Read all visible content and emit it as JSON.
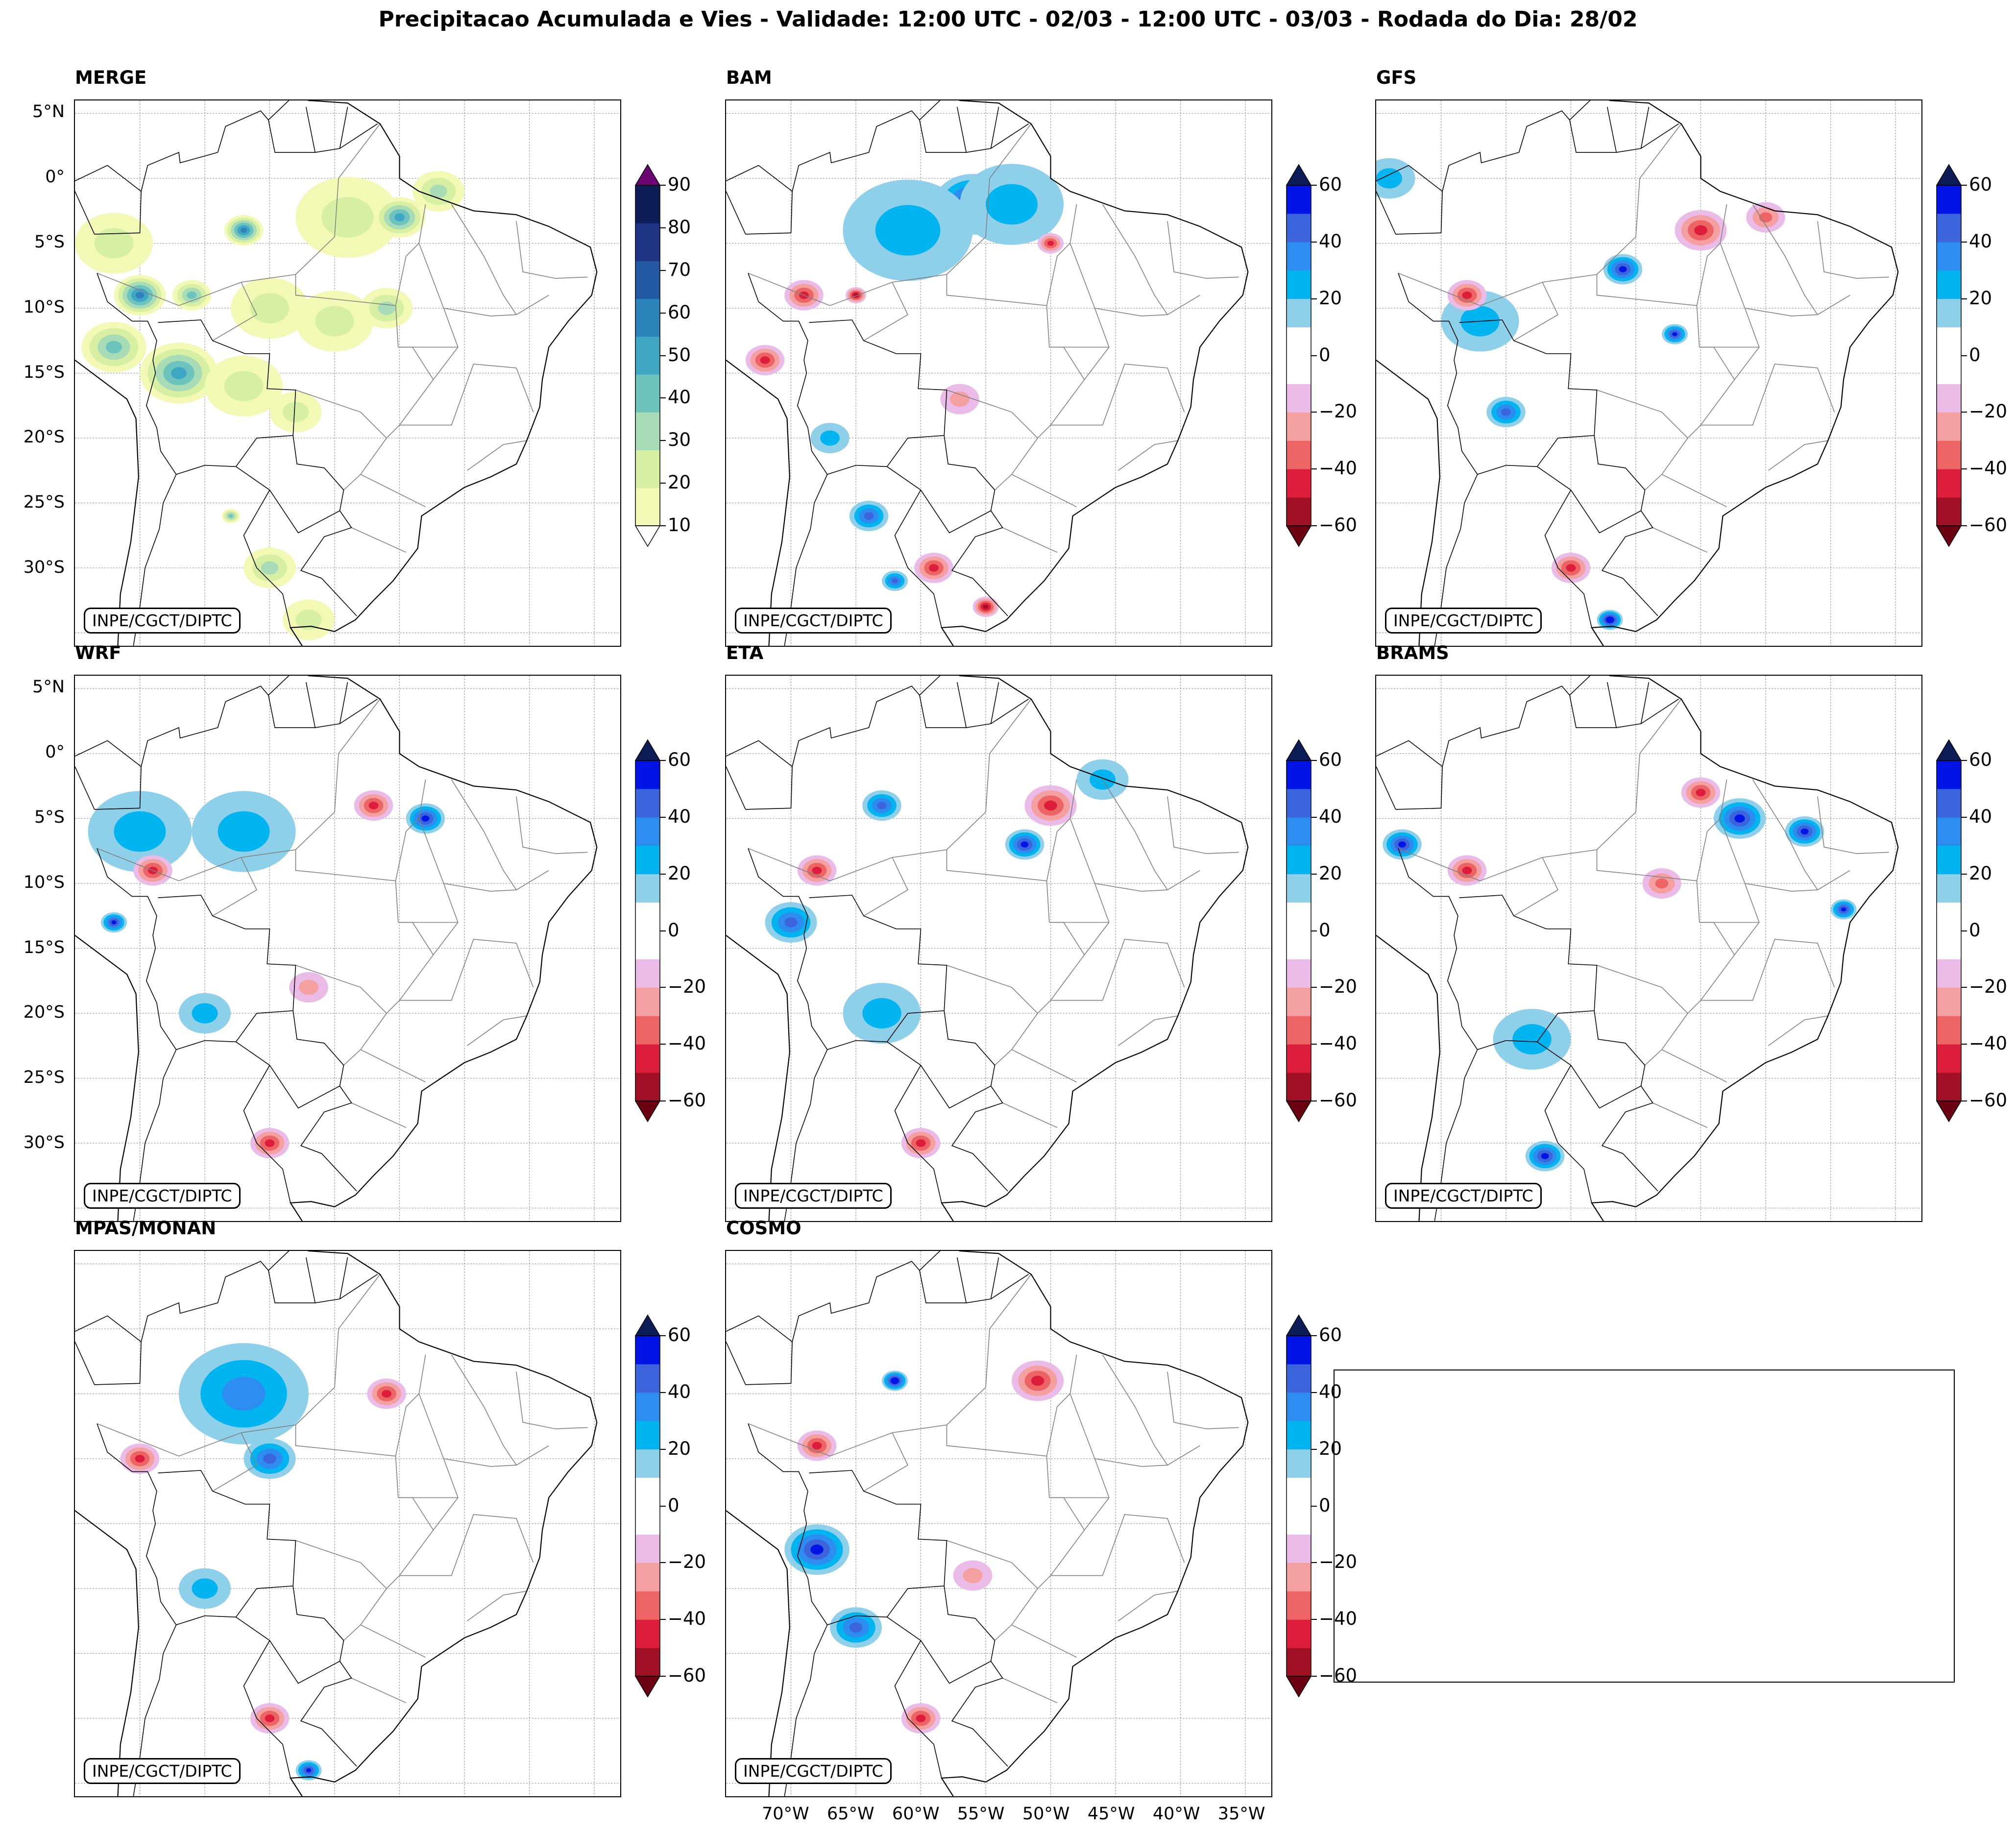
{
  "figure": {
    "title": "Precipitacao Acumulada e Vies - Validade: 12:00 UTC - 02/03 - 12:00 UTC - 03/03 - Rodada do Dia: 28/02",
    "credit_label": "INPE/CGCT/DIPTC",
    "lat_ticks": [
      "5°N",
      "0°",
      "5°S",
      "10°S",
      "15°S",
      "20°S",
      "25°S",
      "30°S"
    ],
    "lon_ticks": [
      "70°W",
      "65°W",
      "60°W",
      "55°W",
      "50°W",
      "45°W",
      "40°W",
      "35°W"
    ]
  },
  "colors": {
    "background": "#ffffff",
    "coast": "#000000",
    "borders": "#808080",
    "grid": "#999999",
    "merge_scale": [
      "#f1f9b4",
      "#d7efa3",
      "#a8dcb7",
      "#6cc4bd",
      "#3fa7c3",
      "#2b83ba",
      "#2359a2",
      "#1e3585",
      "#0b1c57"
    ],
    "bias_positive": [
      "#8ecfea",
      "#00b4f0",
      "#2d8cf0",
      "#3c64dc",
      "#0014e6"
    ],
    "bias_negative": [
      "#eabbe6",
      "#f4a0a0",
      "#ec6464",
      "#dc1e3c",
      "#a00f23"
    ]
  },
  "panels": [
    {
      "id": "merge",
      "title": "MERGE",
      "type": "precipitation"
    },
    {
      "id": "bam",
      "title": "BAM",
      "type": "bias"
    },
    {
      "id": "gfs",
      "title": "GFS",
      "type": "bias"
    },
    {
      "id": "wrf",
      "title": "WRF",
      "type": "bias"
    },
    {
      "id": "eta",
      "title": "ETA",
      "type": "bias"
    },
    {
      "id": "brams",
      "title": "BRAMS",
      "type": "bias"
    },
    {
      "id": "mpas",
      "title": "MPAS/MONAN",
      "type": "bias"
    },
    {
      "id": "cosmo",
      "title": "COSMO",
      "type": "bias"
    }
  ],
  "colorbars": {
    "precipitation": {
      "labels": [
        "90",
        "80",
        "70",
        "60",
        "50",
        "40",
        "30",
        "20",
        "10"
      ],
      "min": 10,
      "max": 90
    },
    "bias": {
      "labels": [
        "60",
        "40",
        "20",
        "0",
        "−20",
        "−40",
        "−60"
      ],
      "min": -60,
      "max": 60
    }
  },
  "blobs": {
    "merge": [
      {
        "lon": -54,
        "lat": -3,
        "mm": 20,
        "r": 4
      },
      {
        "lon": -50,
        "lat": -3,
        "mm": 50,
        "r": 2
      },
      {
        "lon": -47,
        "lat": -1,
        "mm": 30,
        "r": 2
      },
      {
        "lon": -62,
        "lat": -4,
        "mm": 60,
        "r": 1.5
      },
      {
        "lon": -72,
        "lat": -5,
        "mm": 20,
        "r": 3
      },
      {
        "lon": -70,
        "lat": -9,
        "mm": 60,
        "r": 2
      },
      {
        "lon": -66,
        "lat": -9,
        "mm": 40,
        "r": 1.5
      },
      {
        "lon": -60,
        "lat": -10,
        "mm": 20,
        "r": 3
      },
      {
        "lon": -67,
        "lat": -15,
        "mm": 50,
        "r": 3
      },
      {
        "lon": -62,
        "lat": -16,
        "mm": 20,
        "r": 3
      },
      {
        "lon": -72,
        "lat": -13,
        "mm": 40,
        "r": 2.5
      },
      {
        "lon": -55,
        "lat": -11,
        "mm": 20,
        "r": 3
      },
      {
        "lon": -51,
        "lat": -10,
        "mm": 30,
        "r": 2
      },
      {
        "lon": -58,
        "lat": -18,
        "mm": 20,
        "r": 2
      },
      {
        "lon": -63,
        "lat": -26,
        "mm": 40,
        "r": 0.7
      },
      {
        "lon": -60,
        "lat": -30,
        "mm": 30,
        "r": 2
      },
      {
        "lon": -57,
        "lat": -34,
        "mm": 20,
        "r": 2
      }
    ],
    "bam": [
      {
        "lon": -56,
        "lat": -2,
        "b": 50,
        "r": 3
      },
      {
        "lon": -61,
        "lat": -4,
        "b": 20,
        "r": 5
      },
      {
        "lon": -53,
        "lat": -2,
        "b": 20,
        "r": 4
      },
      {
        "lon": -69,
        "lat": -9,
        "b": -40,
        "r": 1.5
      },
      {
        "lon": -65,
        "lat": -9,
        "b": -50,
        "r": 0.8
      },
      {
        "lon": -72,
        "lat": -14,
        "b": -40,
        "r": 1.5
      },
      {
        "lon": -50,
        "lat": -5,
        "b": -40,
        "r": 1
      },
      {
        "lon": -67,
        "lat": -20,
        "b": 20,
        "r": 1.5
      },
      {
        "lon": -64,
        "lat": -26,
        "b": 40,
        "r": 1.5
      },
      {
        "lon": -62,
        "lat": -31,
        "b": 40,
        "r": 1
      },
      {
        "lon": -59,
        "lat": -30,
        "b": -40,
        "r": 1.5
      },
      {
        "lon": -55,
        "lat": -33,
        "b": -50,
        "r": 1
      },
      {
        "lon": -57,
        "lat": -17,
        "b": -20,
        "r": 1.5
      }
    ],
    "gfs": [
      {
        "lon": -56,
        "lat": -7,
        "b": 50,
        "r": 1.5
      },
      {
        "lon": -52,
        "lat": -12,
        "b": 50,
        "r": 1
      },
      {
        "lon": -67,
        "lat": -11,
        "b": 20,
        "r": 3
      },
      {
        "lon": -65,
        "lat": -18,
        "b": 40,
        "r": 1.5
      },
      {
        "lon": -50,
        "lat": -4,
        "b": -40,
        "r": 2
      },
      {
        "lon": -45,
        "lat": -3,
        "b": -30,
        "r": 1.5
      },
      {
        "lon": -68,
        "lat": -9,
        "b": -40,
        "r": 1.5
      },
      {
        "lon": -60,
        "lat": -30,
        "b": -40,
        "r": 1.5
      },
      {
        "lon": -57,
        "lat": -34,
        "b": 60,
        "r": 1
      },
      {
        "lon": -74,
        "lat": 0,
        "b": 20,
        "r": 2
      }
    ],
    "wrf": [
      {
        "lon": -70,
        "lat": -6,
        "b": 20,
        "r": 4
      },
      {
        "lon": -62,
        "lat": -6,
        "b": 20,
        "r": 4
      },
      {
        "lon": -48,
        "lat": -5,
        "b": 50,
        "r": 1.5
      },
      {
        "lon": -52,
        "lat": -4,
        "b": -40,
        "r": 1.5
      },
      {
        "lon": -69,
        "lat": -9,
        "b": -40,
        "r": 1.5
      },
      {
        "lon": -72,
        "lat": -13,
        "b": 50,
        "r": 1
      },
      {
        "lon": -65,
        "lat": -20,
        "b": 20,
        "r": 2
      },
      {
        "lon": -60,
        "lat": -30,
        "b": -40,
        "r": 1.5
      },
      {
        "lon": -57,
        "lat": -18,
        "b": -20,
        "r": 1.5
      }
    ],
    "eta": [
      {
        "lon": -52,
        "lat": -7,
        "b": 50,
        "r": 1.5
      },
      {
        "lon": -50,
        "lat": -4,
        "b": -40,
        "r": 2
      },
      {
        "lon": -63,
        "lat": -4,
        "b": 40,
        "r": 1.5
      },
      {
        "lon": -68,
        "lat": -9,
        "b": -40,
        "r": 1.5
      },
      {
        "lon": -70,
        "lat": -13,
        "b": 40,
        "r": 2
      },
      {
        "lon": -63,
        "lat": -20,
        "b": 20,
        "r": 3
      },
      {
        "lon": -60,
        "lat": -30,
        "b": -40,
        "r": 1.5
      },
      {
        "lon": -46,
        "lat": -2,
        "b": 20,
        "r": 2
      }
    ],
    "brams": [
      {
        "lon": -73,
        "lat": -7,
        "b": 50,
        "r": 1.5
      },
      {
        "lon": -47,
        "lat": -5,
        "b": 50,
        "r": 2
      },
      {
        "lon": -42,
        "lat": -6,
        "b": 50,
        "r": 1.5
      },
      {
        "lon": -39,
        "lat": -12,
        "b": 50,
        "r": 1
      },
      {
        "lon": -68,
        "lat": -9,
        "b": -40,
        "r": 1.5
      },
      {
        "lon": -50,
        "lat": -3,
        "b": -40,
        "r": 1.5
      },
      {
        "lon": -62,
        "lat": -31,
        "b": 50,
        "r": 1.5
      },
      {
        "lon": -63,
        "lat": -22,
        "b": 20,
        "r": 3
      },
      {
        "lon": -53,
        "lat": -10,
        "b": -30,
        "r": 1.5
      }
    ],
    "mpas": [
      {
        "lon": -62,
        "lat": -5,
        "b": 30,
        "r": 5
      },
      {
        "lon": -60,
        "lat": -10,
        "b": 40,
        "r": 2
      },
      {
        "lon": -51,
        "lat": -5,
        "b": -40,
        "r": 1.5
      },
      {
        "lon": -70,
        "lat": -10,
        "b": -40,
        "r": 1.5
      },
      {
        "lon": -65,
        "lat": -20,
        "b": 20,
        "r": 2
      },
      {
        "lon": -60,
        "lat": -30,
        "b": -40,
        "r": 1.5
      },
      {
        "lon": -57,
        "lat": -34,
        "b": 50,
        "r": 1
      }
    ],
    "cosmo": [
      {
        "lon": -62,
        "lat": -4,
        "b": 60,
        "r": 1
      },
      {
        "lon": -51,
        "lat": -4,
        "b": -40,
        "r": 2
      },
      {
        "lon": -68,
        "lat": -9,
        "b": -40,
        "r": 1.5
      },
      {
        "lon": -68,
        "lat": -17,
        "b": 50,
        "r": 2.5
      },
      {
        "lon": -65,
        "lat": -23,
        "b": 40,
        "r": 2
      },
      {
        "lon": -60,
        "lat": -30,
        "b": -40,
        "r": 1.5
      },
      {
        "lon": -56,
        "lat": -19,
        "b": -20,
        "r": 1.5
      }
    ]
  }
}
